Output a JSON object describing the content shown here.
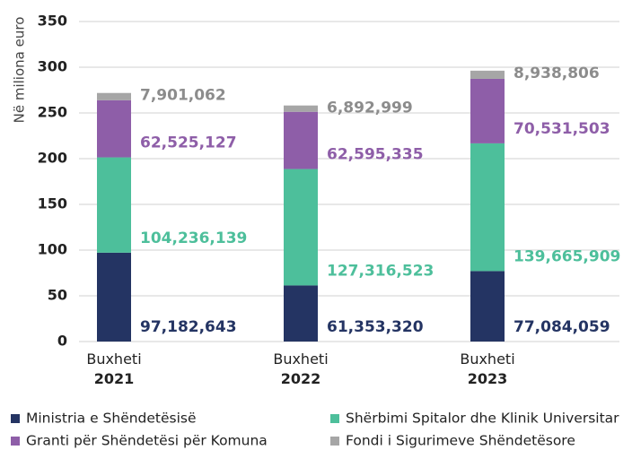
{
  "chart_data": {
    "type": "stacked_bar",
    "y_axis_label": "Në miliona euro",
    "categories": [
      "Buxheti 2021",
      "Buxheti 2022",
      "Buxheti 2023"
    ],
    "series": [
      {
        "name": "Ministria e Shëndetësisë",
        "color": "#243463",
        "values": [
          97.182643,
          61.35332,
          77.084059
        ],
        "value_labels": [
          "97,182,643",
          "61,353,320",
          "77,084,059"
        ]
      },
      {
        "name": "Shërbimi Spitalor dhe Klinik Universitar",
        "color": "#4dbf9b",
        "values": [
          104.236139,
          127.316523,
          139.665909
        ],
        "value_labels": [
          "104,236,139",
          "127,316,523",
          "139,665,909"
        ]
      },
      {
        "name": "Granti për Shëndetësi për Komuna",
        "color": "#8e5ea8",
        "values": [
          62.525127,
          62.595335,
          70.531503
        ],
        "value_labels": [
          "62,525,127",
          "62,595,335",
          "70,531,503"
        ]
      },
      {
        "name": "Fondi i Sigurimeve Shëndetësore",
        "color": "#a6a6a6",
        "values": [
          7.901062,
          6.892999,
          8.938806
        ],
        "value_labels": [
          "7,901,062",
          "6,892,999",
          "8,938,806"
        ]
      }
    ],
    "ylim": [
      0,
      350
    ],
    "yticks": [
      0,
      50,
      100,
      150,
      200,
      250,
      300,
      350
    ],
    "grid": true
  }
}
